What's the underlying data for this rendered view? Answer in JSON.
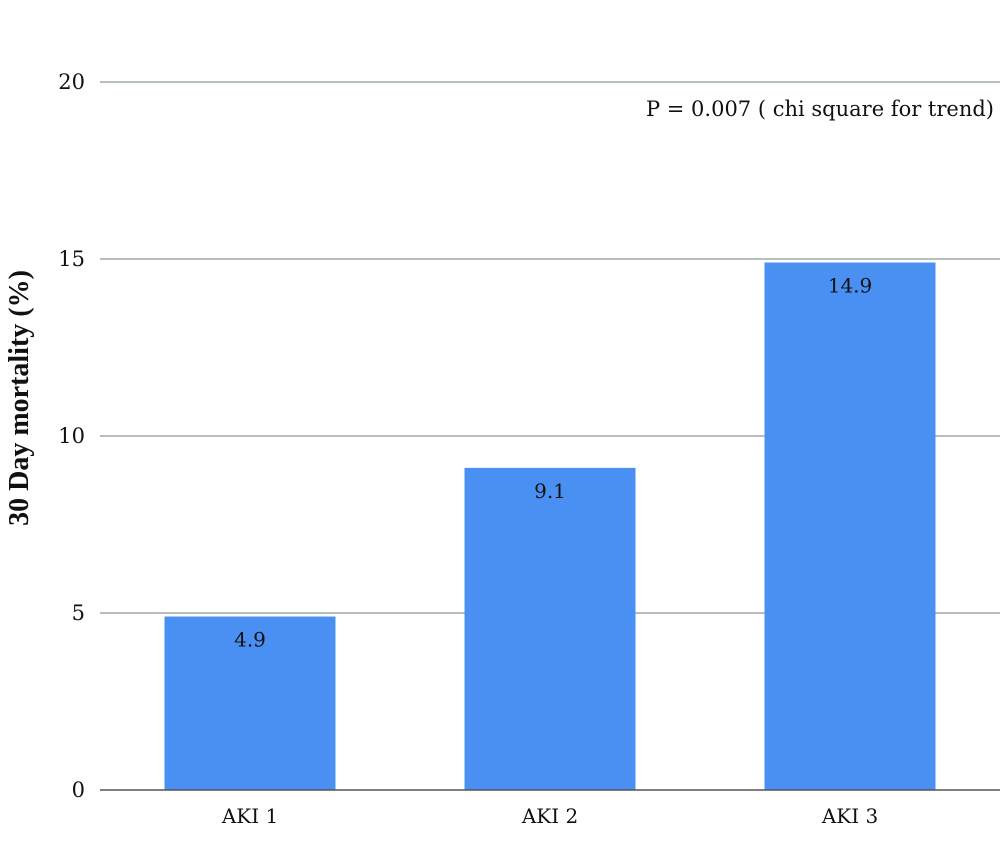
{
  "chart_data": {
    "type": "bar",
    "categories": [
      "AKI 1",
      "AKI 2",
      "AKI 3"
    ],
    "values": [
      4.9,
      9.1,
      14.9
    ],
    "data_labels": [
      "4.9",
      "9.1",
      "14.9"
    ],
    "title": "",
    "xlabel": "",
    "ylabel": "30 Day mortality (%)",
    "ylim": [
      0,
      20
    ],
    "yticks": [
      0,
      5,
      10,
      15,
      20
    ],
    "ytick_labels": [
      "0",
      "5",
      "10",
      "15",
      "20"
    ],
    "grid": true,
    "annotation": "P = 0.007 ( chi square for trend)",
    "bar_color": "#4a90f2",
    "grid_color": "#8a9a9a"
  }
}
